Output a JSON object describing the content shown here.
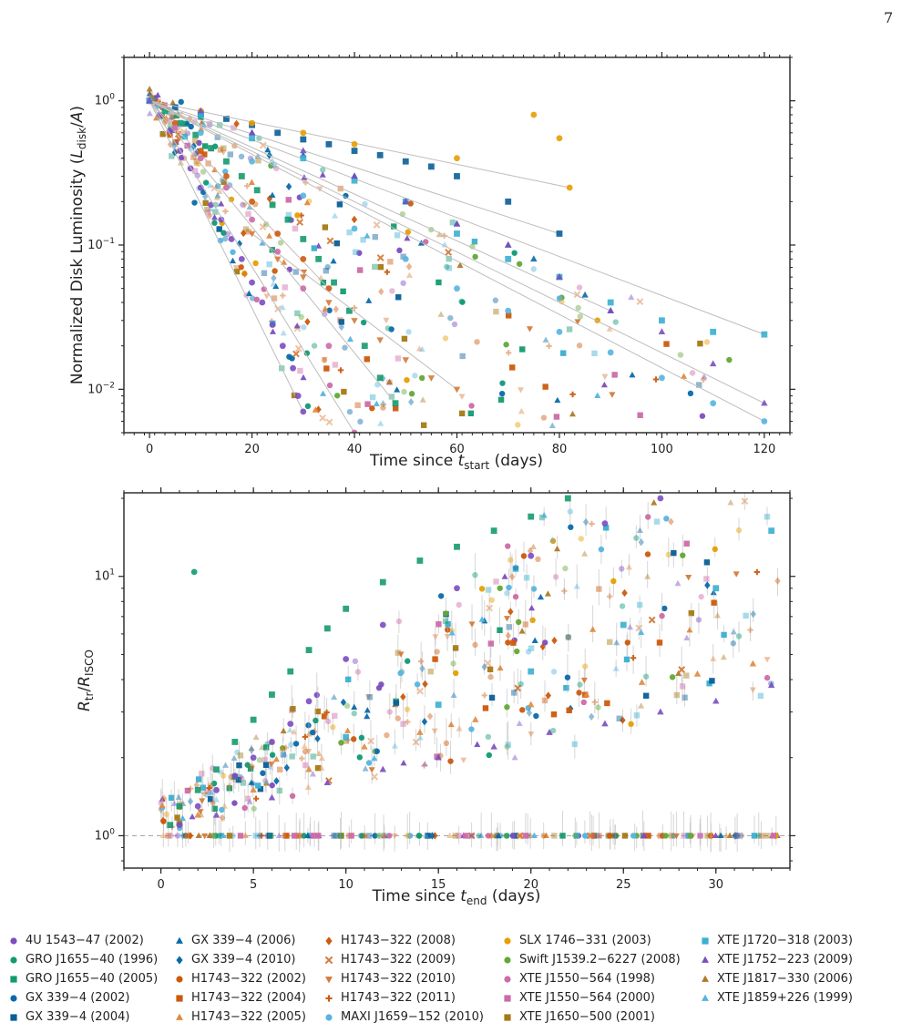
{
  "page_number": "7",
  "colors": {
    "4U 1543-47 (2002)": "#7b4dc0",
    "GRO J1655-40 (1996)": "#0f9a73",
    "GRO J1655-40 (2005)": "#159a6e",
    "GX 339-4 (2002)": "#0a6aa9",
    "GX 339-4 (2004)": "#0a5e97",
    "GX 339-4 (2006)": "#0a6aa9",
    "GX 339-4 (2010)": "#0a6aa9",
    "H1743-322 (2002)": "#cc5a0d",
    "H1743-322 (2004)": "#cc5a0d",
    "H1743-322 (2005)": "#e08a40",
    "H1743-322 (2008)": "#cc5a0d",
    "H1743-322 (2009)": "#d47a3a",
    "H1743-322 (2010)": "#d47a3a",
    "H1743-322 (2011)": "#cc5a0d",
    "MAXI J1659-152 (2010)": "#56b4e0",
    "SLX 1746-331 (2003)": "#e69f00",
    "Swift J1539.2-6227 (2008)": "#63a837",
    "XTE J1550-564 (1998)": "#cc6ba8",
    "XTE J1550-564 (2000)": "#cc6ba8",
    "XTE J1650-500 (2001)": "#a57a15",
    "XTE J1720-318 (2003)": "#3aafd0",
    "XTE J1752-223 (2009)": "#7b4dc0",
    "XTE J1817-330 (2006)": "#b07a2a",
    "XTE J1859+226 (1999)": "#56b4e0"
  },
  "legend": [
    [
      "4U 1543−47 (2002)",
      "circle",
      "#7b4dc0"
    ],
    [
      "GRO J1655−40 (1996)",
      "circle",
      "#0f9a73"
    ],
    [
      "GRO J1655−40 (2005)",
      "square",
      "#159a6e"
    ],
    [
      "GX 339−4 (2002)",
      "circle",
      "#0a6aa9"
    ],
    [
      "GX 339−4 (2004)",
      "square",
      "#0a5e97"
    ],
    [
      "GX 339−4 (2006)",
      "tri",
      "#0a6aa9"
    ],
    [
      "GX 339−4 (2010)",
      "diamond",
      "#0a6aa9"
    ],
    [
      "H1743−322 (2002)",
      "circle",
      "#cc5a0d"
    ],
    [
      "H1743−322 (2004)",
      "square",
      "#cc5a0d"
    ],
    [
      "H1743−322 (2005)",
      "tri",
      "#e08a40"
    ],
    [
      "H1743−322 (2008)",
      "diamond",
      "#cc5a0d"
    ],
    [
      "H1743−322 (2009)",
      "x",
      "#d47a3a"
    ],
    [
      "H1743−322 (2010)",
      "trid",
      "#d47a3a"
    ],
    [
      "H1743−322 (2011)",
      "plus",
      "#cc5a0d"
    ],
    [
      "MAXI J1659−152 (2010)",
      "hex",
      "#56b4e0"
    ],
    [
      "SLX 1746−331 (2003)",
      "circle",
      "#e69f00"
    ],
    [
      "Swift J1539.2−6227 (2008)",
      "circle",
      "#63a837"
    ],
    [
      "XTE J1550−564 (1998)",
      "circle",
      "#cc6ba8"
    ],
    [
      "XTE J1550−564 (2000)",
      "square",
      "#cc6ba8"
    ],
    [
      "XTE J1650−500 (2001)",
      "square",
      "#a57a15"
    ],
    [
      "XTE J1720−318 (2003)",
      "square",
      "#3aafd0"
    ],
    [
      "XTE J1752−223 (2009)",
      "tri",
      "#7b4dc0"
    ],
    [
      "XTE J1817−330 (2006)",
      "tri",
      "#b07a2a"
    ],
    [
      "XTE J1859+226 (1999)",
      "tri",
      "#56b4e0"
    ]
  ],
  "chart_data": [
    {
      "type": "scatter",
      "title": "",
      "xlabel": "Time since t_start (days)",
      "ylabel": "Normalized Disk Luminosity (L_disk/A)",
      "yscale": "log",
      "xlim": [
        -5,
        125
      ],
      "ylim": [
        0.005,
        2.0
      ],
      "xticks": [
        "0",
        "20",
        "40",
        "60",
        "80",
        "100",
        "120"
      ],
      "yticks": [
        "10^0",
        "10^-1",
        "10^-2"
      ],
      "series": [
        {
          "name": "4U 1543−47 (2002)",
          "marker": "circle",
          "x": [
            0,
            2,
            4,
            6,
            8,
            10,
            12,
            14,
            16,
            18,
            20,
            22,
            24,
            26,
            28,
            29,
            30
          ],
          "y": [
            1.0,
            0.8,
            0.62,
            0.45,
            0.34,
            0.25,
            0.19,
            0.15,
            0.11,
            0.08,
            0.055,
            0.04,
            0.028,
            0.02,
            0.014,
            0.009,
            0.007
          ]
        },
        {
          "name": "GRO J1655−40 (2005)",
          "marker": "square",
          "x": [
            0,
            3,
            6,
            9,
            12,
            15,
            18,
            21,
            24,
            27,
            30,
            33,
            36,
            39,
            42,
            45,
            48
          ],
          "y": [
            1.0,
            0.85,
            0.7,
            0.58,
            0.47,
            0.38,
            0.3,
            0.24,
            0.19,
            0.15,
            0.11,
            0.08,
            0.055,
            0.035,
            0.02,
            0.012,
            0.008
          ]
        },
        {
          "name": "GX 339−4 (2004)",
          "marker": "square",
          "x": [
            0,
            5,
            10,
            15,
            20,
            25,
            30,
            35,
            40,
            45,
            50,
            55,
            60,
            70,
            80
          ],
          "y": [
            1.0,
            0.9,
            0.82,
            0.75,
            0.68,
            0.6,
            0.54,
            0.5,
            0.45,
            0.42,
            0.38,
            0.35,
            0.3,
            0.2,
            0.12
          ]
        },
        {
          "name": "GX 339−4 (2006)",
          "marker": "tri",
          "x": [
            0,
            10,
            20,
            30,
            40,
            50,
            60,
            70,
            75,
            80,
            85,
            90
          ],
          "y": [
            1.0,
            0.8,
            0.6,
            0.42,
            0.3,
            0.2,
            0.14,
            0.1,
            0.08,
            0.06,
            0.045,
            0.035
          ]
        },
        {
          "name": "H1743−322 (2002)",
          "marker": "circle",
          "x": [
            0,
            5,
            10,
            15,
            20,
            25,
            30,
            35
          ],
          "y": [
            1.0,
            0.7,
            0.45,
            0.3,
            0.2,
            0.12,
            0.08,
            0.05
          ]
        },
        {
          "name": "H1743−322 (2010)",
          "marker": "trid",
          "x": [
            20,
            25,
            30,
            35,
            40,
            45,
            50,
            55,
            60
          ],
          "y": [
            0.12,
            0.08,
            0.06,
            0.04,
            0.03,
            0.022,
            0.016,
            0.012,
            0.01
          ]
        },
        {
          "name": "MAXI J1659−152 (2010)",
          "marker": "hex",
          "x": [
            0,
            10,
            20,
            30,
            40,
            50,
            60,
            70,
            80,
            90,
            100,
            110,
            120
          ],
          "y": [
            1.0,
            0.6,
            0.38,
            0.22,
            0.13,
            0.08,
            0.05,
            0.035,
            0.025,
            0.018,
            0.012,
            0.008,
            0.006
          ]
        },
        {
          "name": "SLX 1746−331 (2003)",
          "marker": "circle",
          "x": [
            0,
            10,
            20,
            30,
            40,
            60,
            75,
            80,
            82
          ],
          "y": [
            1.0,
            0.85,
            0.7,
            0.6,
            0.5,
            0.4,
            0.8,
            0.55,
            0.25
          ]
        },
        {
          "name": "XTE J1550−564 (1998)",
          "marker": "circle",
          "x": [
            0,
            5,
            10,
            15,
            20,
            25,
            30,
            35,
            40
          ],
          "y": [
            1.0,
            0.65,
            0.4,
            0.25,
            0.15,
            0.09,
            0.05,
            0.02,
            0.005
          ]
        },
        {
          "name": "XTE J1720−318 (2003)",
          "marker": "square",
          "x": [
            0,
            10,
            20,
            30,
            40,
            50,
            60,
            70,
            80,
            90,
            100,
            110,
            120
          ],
          "y": [
            1.0,
            0.8,
            0.55,
            0.4,
            0.28,
            0.2,
            0.12,
            0.08,
            0.06,
            0.04,
            0.03,
            0.025,
            0.024
          ]
        },
        {
          "name": "XTE J1752−223 (2009)",
          "marker": "tri",
          "x": [
            0,
            10,
            20,
            30,
            40,
            50,
            60,
            70,
            80,
            90,
            100,
            110,
            120
          ],
          "y": [
            1.0,
            0.85,
            0.6,
            0.45,
            0.3,
            0.2,
            0.14,
            0.1,
            0.06,
            0.035,
            0.025,
            0.015,
            0.008
          ]
        }
      ]
    },
    {
      "type": "scatter",
      "title": "",
      "xlabel": "Time since t_end (days)",
      "ylabel": "R_tr/R_ISCO",
      "yscale": "log",
      "xlim": [
        -2,
        34
      ],
      "ylim": [
        0.75,
        21
      ],
      "xticks": [
        "0",
        "5",
        "10",
        "15",
        "20",
        "25",
        "30"
      ],
      "yticks": [
        "10^0",
        "10^1"
      ],
      "reference_line": 1.0,
      "series": [
        {
          "name": "GRO J1655−40 (2005)",
          "marker": "square",
          "x": [
            0.5,
            1,
            2,
            3,
            4,
            5,
            6,
            7,
            8,
            9,
            10,
            12,
            14,
            16,
            18,
            20,
            22
          ],
          "y": [
            1.1,
            1.3,
            1.5,
            1.8,
            2.3,
            2.8,
            3.5,
            4.3,
            5.2,
            6.3,
            7.5,
            9.5,
            11.5,
            13,
            15,
            17,
            20
          ]
        },
        {
          "name": "GRO J1655−40 (1996)",
          "marker": "circle",
          "x": [
            1.8
          ],
          "y": [
            10.4
          ]
        },
        {
          "name": "4U 1543−47 (2002)",
          "marker": "circle",
          "x": [
            1,
            2,
            3,
            4,
            5,
            6,
            7,
            8,
            10,
            12,
            16,
            20,
            24,
            27
          ],
          "y": [
            1.1,
            1.3,
            1.5,
            1.7,
            2.0,
            2.3,
            2.7,
            3.3,
            4.8,
            6.5,
            9,
            12,
            16,
            20
          ]
        },
        {
          "name": "H1743−322 (2005)",
          "marker": "tri",
          "x": [
            2,
            5,
            8,
            11,
            14,
            17,
            20,
            23,
            26,
            29,
            32
          ],
          "y": [
            1.2,
            1.5,
            1.8,
            2.2,
            2.5,
            2.8,
            3.2,
            3.5,
            3.9,
            4.2,
            4.6
          ]
        },
        {
          "name": "XTE J1720−318 (2003)",
          "marker": "square",
          "x": [
            10,
            15,
            20,
            25,
            30,
            33
          ],
          "y": [
            2.4,
            3.2,
            4.3,
            6.5,
            9,
            15
          ]
        },
        {
          "name": "XTE J1752−223 (2009)",
          "marker": "tri",
          "x": [
            3,
            6,
            9,
            12,
            15,
            18,
            21,
            24,
            27,
            30,
            33
          ],
          "y": [
            1.2,
            1.4,
            1.6,
            1.8,
            2.0,
            2.2,
            2.5,
            2.7,
            3.0,
            3.3,
            3.8
          ]
        }
      ]
    }
  ]
}
